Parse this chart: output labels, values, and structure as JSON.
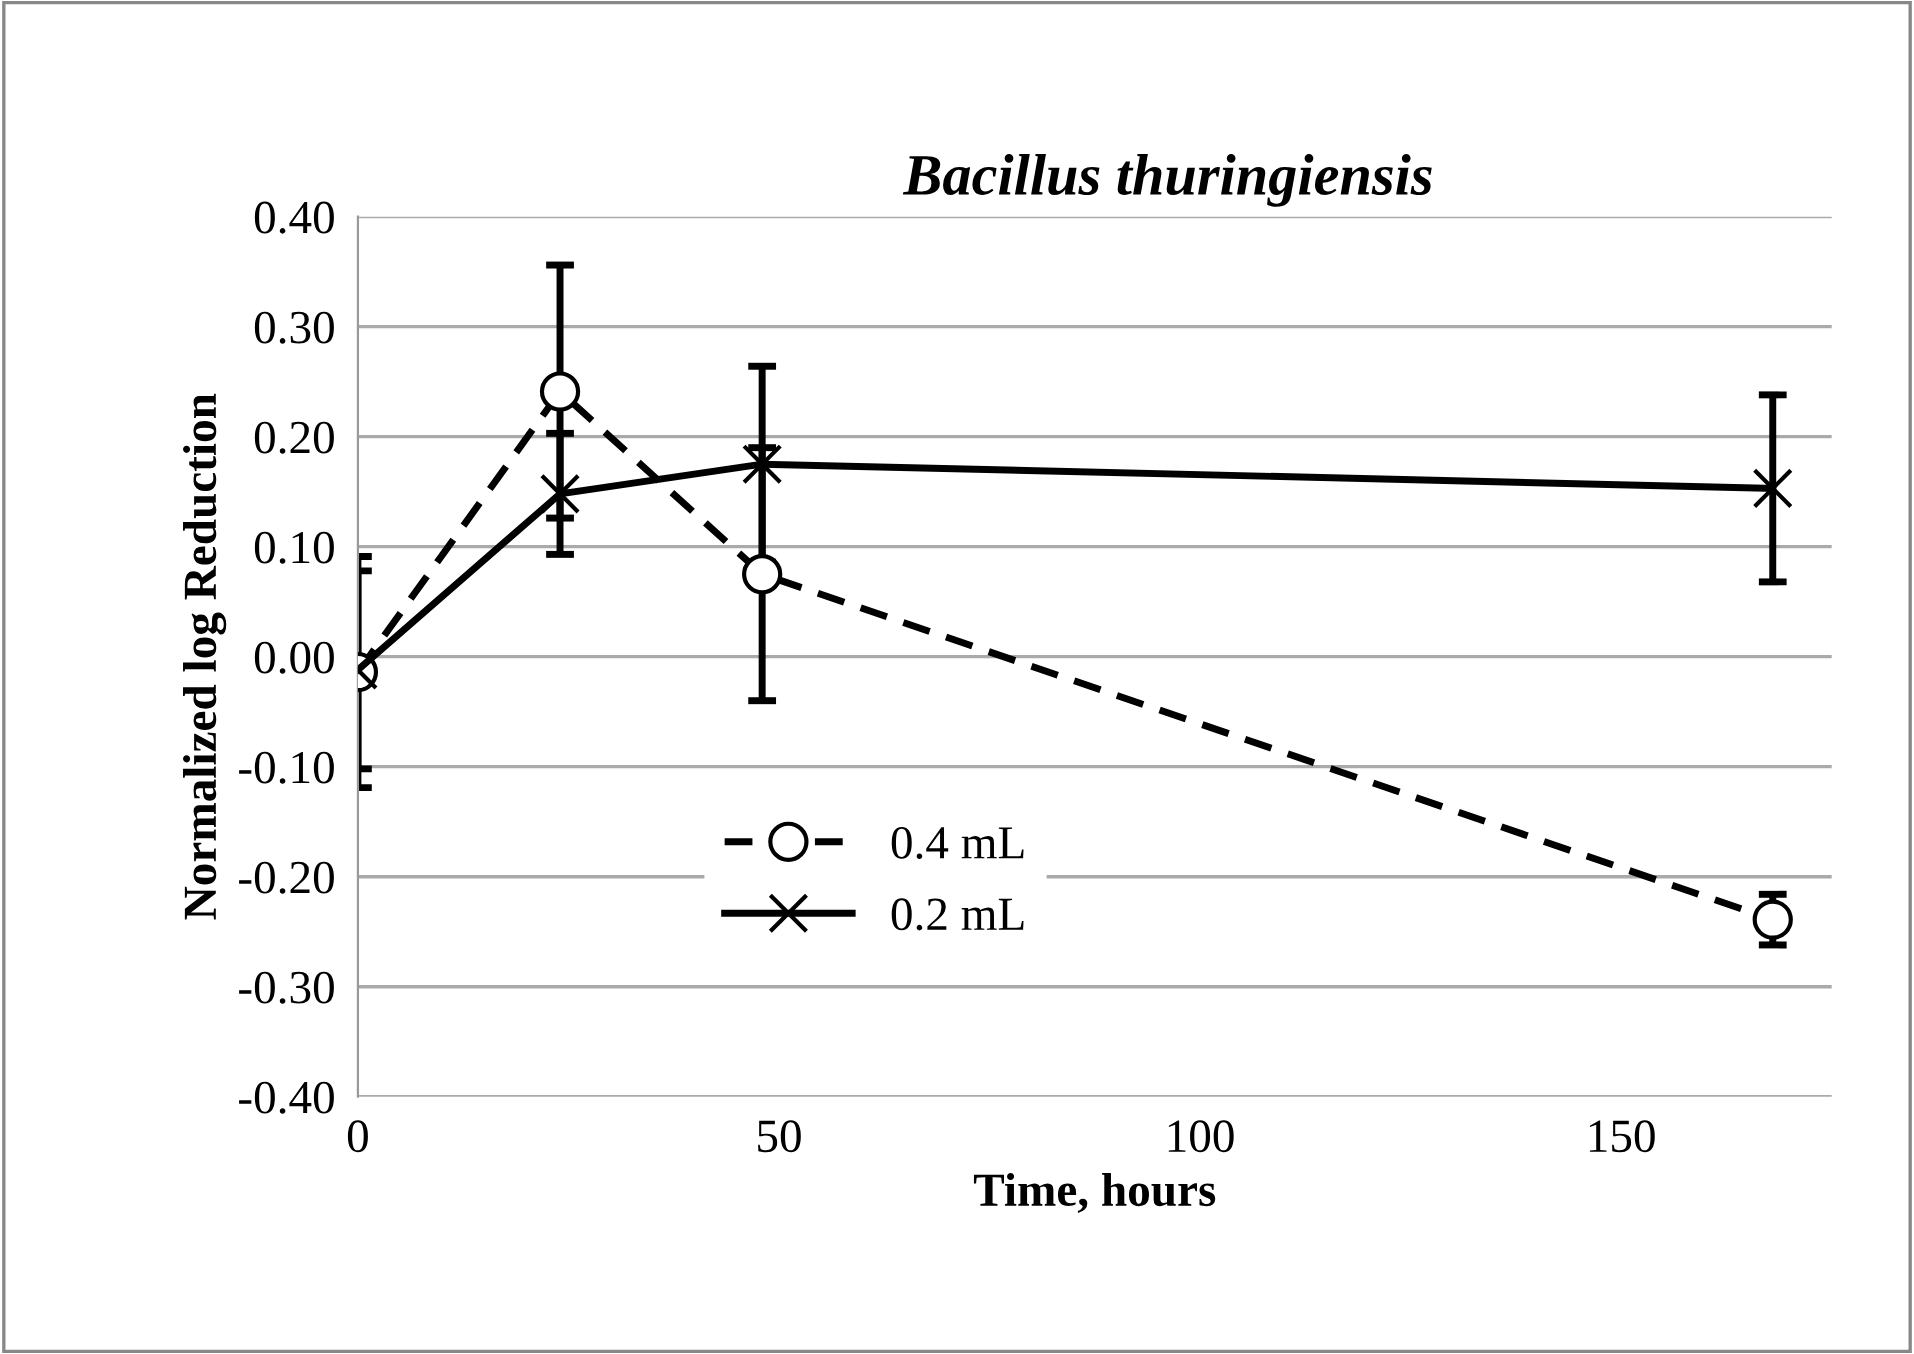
{
  "chart_data": {
    "type": "line",
    "title": "Bacillus thuringiensis",
    "xlabel": "Time, hours",
    "ylabel": "Normalized log Reduction",
    "x": [
      0,
      24,
      48,
      168
    ],
    "series": [
      {
        "name": "0.4 mL",
        "color": "#000000",
        "values": [
          -0.014,
          0.241,
          0.075,
          -0.239
        ],
        "errors": [
          0.105,
          0.115,
          0.115,
          0.023
        ],
        "marker": "circle",
        "line_style": "dashed"
      },
      {
        "name": "0.2 mL",
        "color": "#000000",
        "values": [
          -0.012,
          0.148,
          0.175,
          0.153
        ],
        "errors": [
          0.09,
          0.055,
          0.089,
          0.085
        ],
        "marker": "cross",
        "line_style": "solid"
      }
    ],
    "xlim": [
      0,
      175
    ],
    "xticks": [
      0,
      50,
      100,
      150
    ],
    "ylim": [
      -0.4,
      0.4
    ],
    "yticks": [
      {
        "value": -0.4,
        "label": "-0.40"
      },
      {
        "value": -0.3,
        "label": "-0.30"
      },
      {
        "value": -0.2,
        "label": "-0.20"
      },
      {
        "value": -0.1,
        "label": "-0.10"
      },
      {
        "value": 0,
        "label": "0.00"
      },
      {
        "value": 0.1,
        "label": "0.10"
      },
      {
        "value": 0.2,
        "label": "0.20"
      },
      {
        "value": 0.3,
        "label": "0.30"
      },
      {
        "value": 0.4,
        "label": "0.40"
      }
    ],
    "grid": "y",
    "legend": "bottom left"
  }
}
